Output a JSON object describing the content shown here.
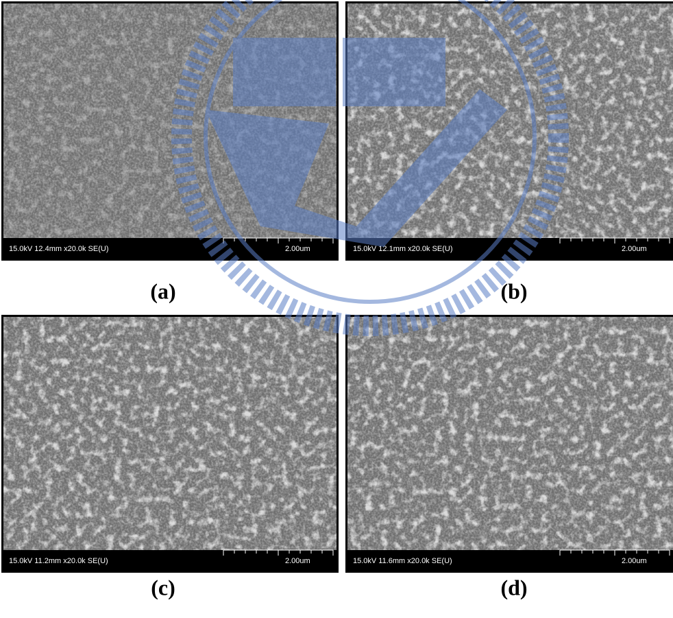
{
  "panels": [
    {
      "info": "15.0kV 12.4mm x20.0k SE(U)",
      "scale": "2.00um",
      "label": "(a)"
    },
    {
      "info": "15.0kV 12.1mm x20.0k SE(U)",
      "scale": "2.00um",
      "label": "(b)"
    },
    {
      "info": "15.0kV 11.2mm x20.0k SE(U)",
      "scale": "2.00um",
      "label": "(c)"
    },
    {
      "info": "15.0kV 11.6mm x20.0k SE(U)",
      "scale": "2.00um",
      "label": "(d)"
    }
  ]
}
